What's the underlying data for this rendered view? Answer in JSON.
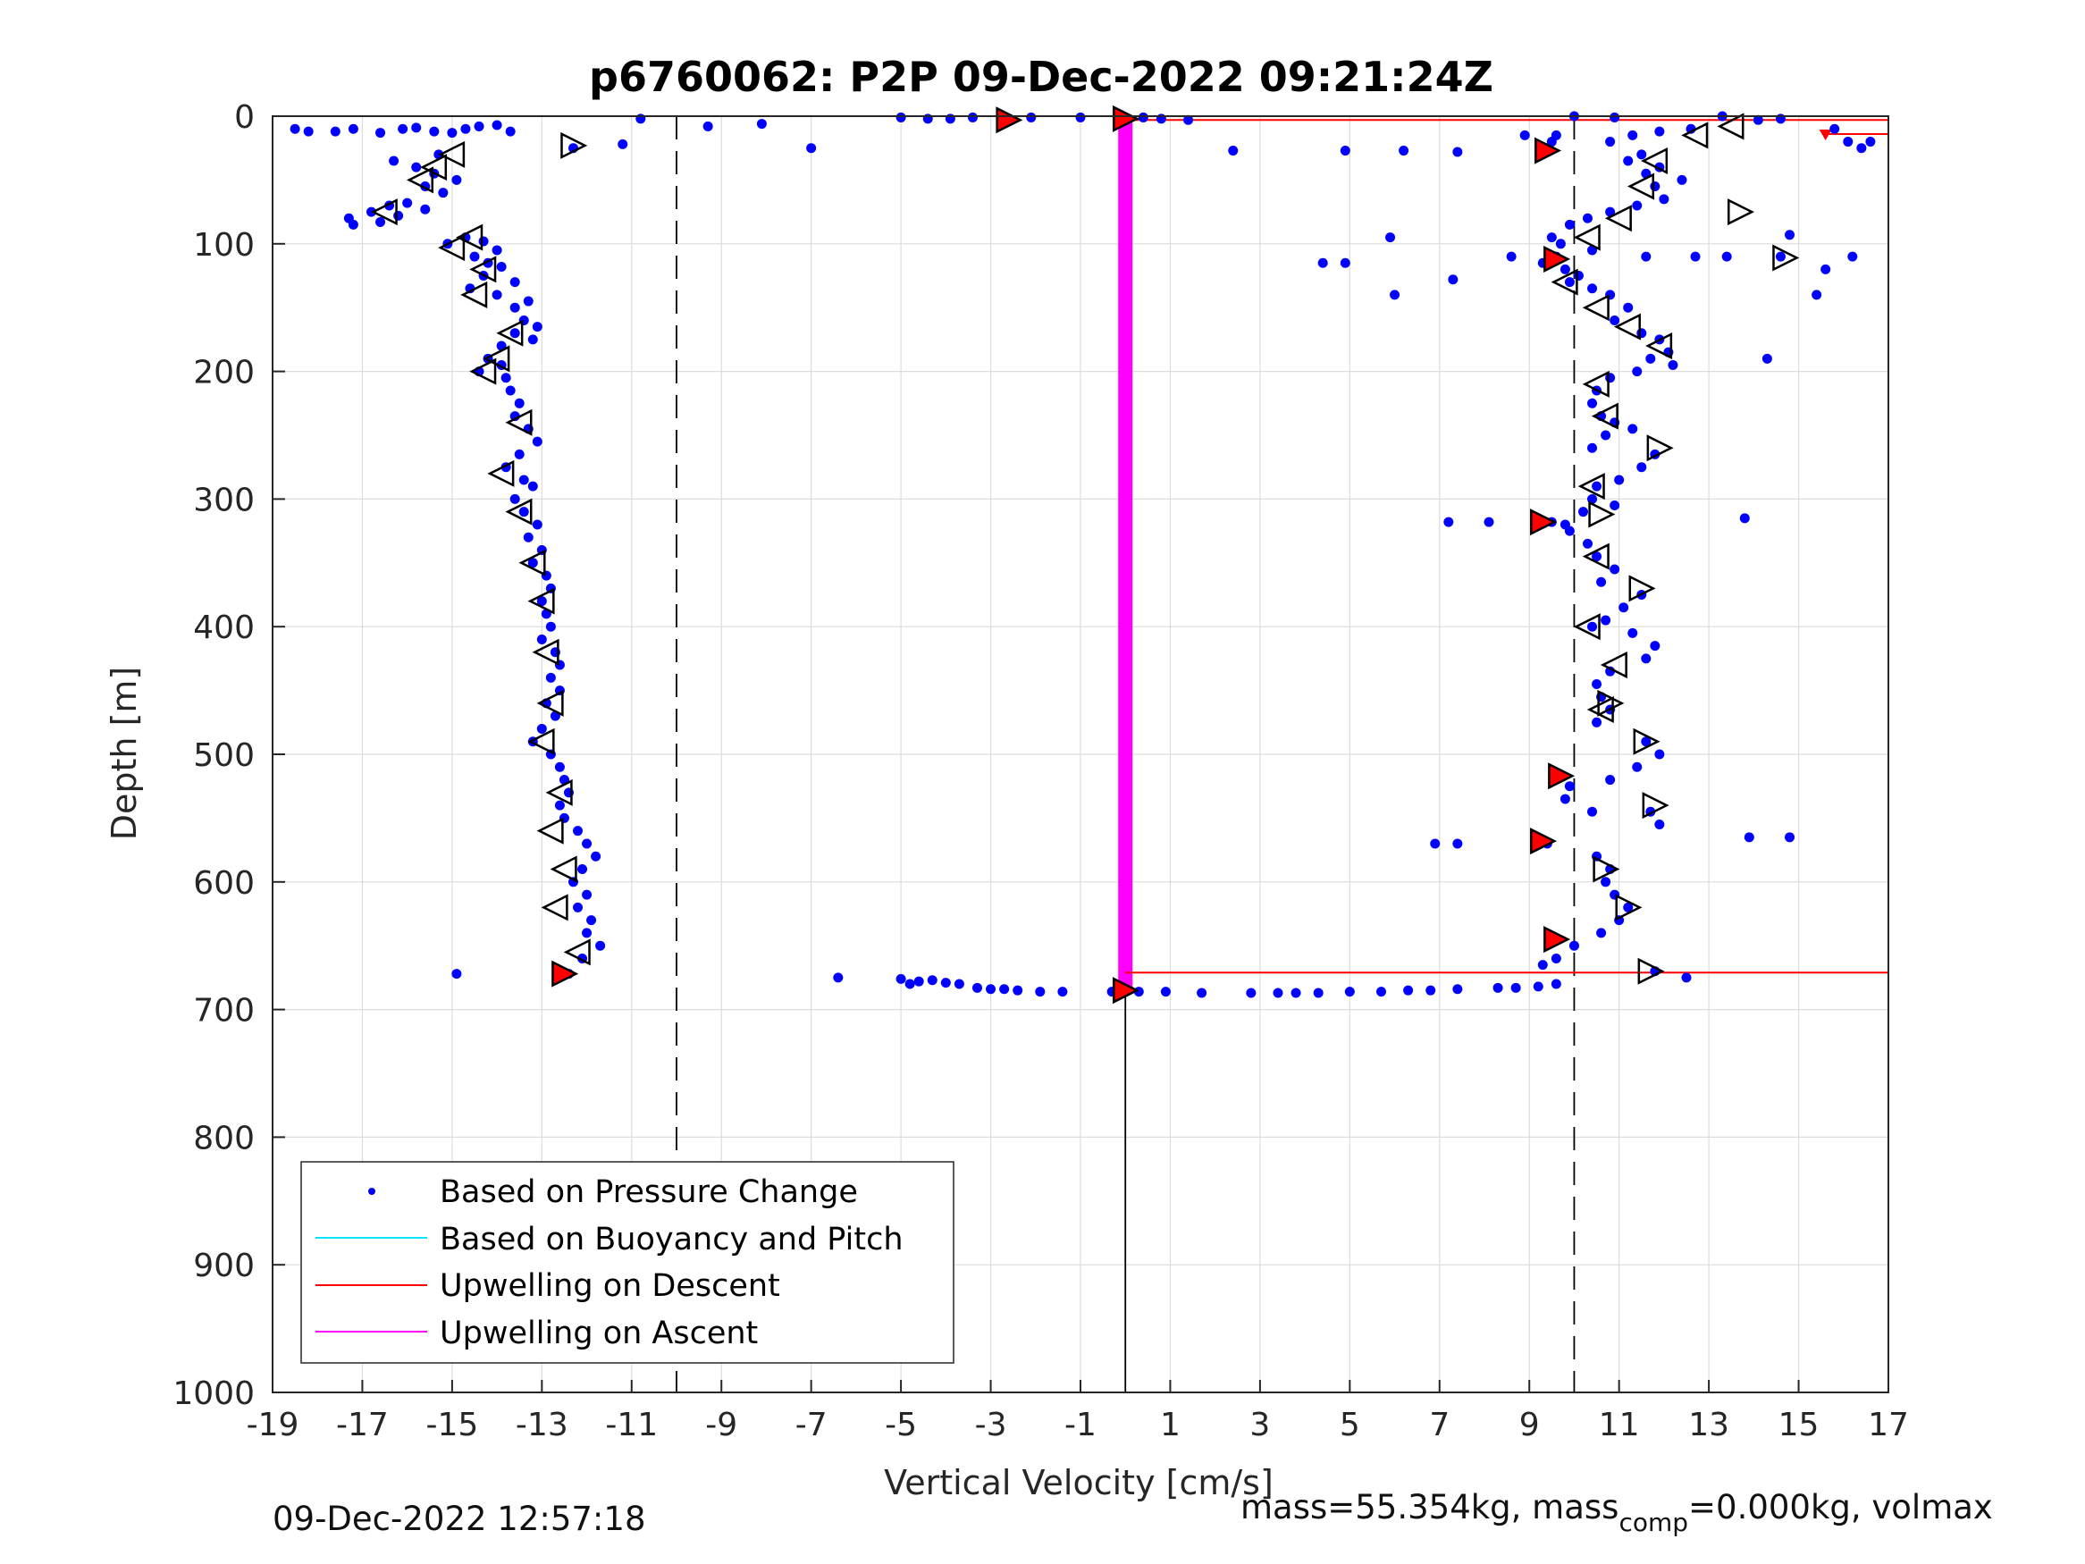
{
  "chart_data": {
    "type": "scatter",
    "title": "p6760062: P2P 09-Dec-2022 09:21:24Z",
    "xlabel": "Vertical Velocity [cm/s]",
    "ylabel": "Depth [m]",
    "xlim": [
      -19,
      17
    ],
    "ylim": [
      0,
      1000
    ],
    "y_reversed": true,
    "xticks": [
      -19,
      -17,
      -15,
      -13,
      -11,
      -9,
      -7,
      -5,
      -3,
      -1,
      1,
      3,
      5,
      7,
      9,
      11,
      13,
      15,
      17
    ],
    "yticks": [
      0,
      100,
      200,
      300,
      400,
      500,
      600,
      700,
      800,
      900,
      1000
    ],
    "grid": true,
    "legend_position": "bottom-left",
    "legend": [
      {
        "label": "Based on Pressure Change",
        "color": "#0000ff",
        "style": "dot"
      },
      {
        "label": "Based on Buoyancy and Pitch",
        "color": "#00e5ff",
        "style": "line"
      },
      {
        "label": "Upwelling on Descent",
        "color": "#ff0000",
        "style": "line"
      },
      {
        "label": "Upwelling on Ascent",
        "color": "#ff00ff",
        "style": "line"
      }
    ],
    "reference_lines": {
      "dashed_x": [
        -10,
        10
      ],
      "solid_x": 0,
      "solid_x_depth_range": [
        685,
        1000
      ]
    },
    "upwelling_on_ascent": {
      "x": 0,
      "depth_range": [
        2,
        685
      ],
      "color": "#ff00ff"
    },
    "upwelling_on_descent": [
      {
        "x_range": [
          0,
          17
        ],
        "depth": 3,
        "color": "#ff0000"
      },
      {
        "x_range": [
          0,
          17
        ],
        "depth": 671,
        "color": "#ff0000"
      },
      {
        "x_range": [
          15.6,
          17
        ],
        "depth": 14,
        "color": "#ff0000"
      }
    ],
    "descent_profile": [
      [
        -18.5,
        10
      ],
      [
        -18.2,
        12
      ],
      [
        -17.6,
        12
      ],
      [
        -17.2,
        10
      ],
      [
        -16.6,
        13
      ],
      [
        -16.1,
        10
      ],
      [
        -15.8,
        9
      ],
      [
        -15.4,
        12
      ],
      [
        -15,
        13
      ],
      [
        -14.7,
        10
      ],
      [
        -14.4,
        8
      ],
      [
        -14,
        7
      ],
      [
        -13.7,
        12
      ],
      [
        -16.3,
        35
      ],
      [
        -15.8,
        40
      ],
      [
        -15.4,
        45
      ],
      [
        -15.6,
        55
      ],
      [
        -15.2,
        60
      ],
      [
        -14.9,
        50
      ],
      [
        -15.3,
        30
      ],
      [
        -16.8,
        75
      ],
      [
        -17.3,
        80
      ],
      [
        -17.2,
        85
      ],
      [
        -16.6,
        83
      ],
      [
        -16.2,
        78
      ],
      [
        -16.4,
        70
      ],
      [
        -16.0,
        68
      ],
      [
        -15.6,
        73
      ],
      [
        -15.1,
        100
      ],
      [
        -14.7,
        95
      ],
      [
        -14.3,
        98
      ],
      [
        -14.0,
        105
      ],
      [
        -14.5,
        110
      ],
      [
        -14.2,
        115
      ],
      [
        -13.9,
        118
      ],
      [
        -14.3,
        125
      ],
      [
        -14.6,
        135
      ],
      [
        -14.0,
        140
      ],
      [
        -13.6,
        130
      ],
      [
        -13.3,
        145
      ],
      [
        -13.6,
        150
      ],
      [
        -13.4,
        160
      ],
      [
        -13.1,
        165
      ],
      [
        -13.6,
        170
      ],
      [
        -13.2,
        175
      ],
      [
        -13.9,
        180
      ],
      [
        -14.2,
        190
      ],
      [
        -13.9,
        195
      ],
      [
        -14.4,
        200
      ],
      [
        -13.8,
        205
      ],
      [
        -13.7,
        215
      ],
      [
        -13.5,
        225
      ],
      [
        -13.6,
        235
      ],
      [
        -13.3,
        245
      ],
      [
        -13.1,
        255
      ],
      [
        -13.5,
        265
      ],
      [
        -13.8,
        275
      ],
      [
        -13.4,
        285
      ],
      [
        -13.2,
        290
      ],
      [
        -13.6,
        300
      ],
      [
        -13.4,
        310
      ],
      [
        -13.1,
        320
      ],
      [
        -13.3,
        330
      ],
      [
        -13.0,
        340
      ],
      [
        -13.2,
        350
      ],
      [
        -12.9,
        360
      ],
      [
        -12.8,
        370
      ],
      [
        -13.0,
        380
      ],
      [
        -12.9,
        390
      ],
      [
        -12.8,
        400
      ],
      [
        -13.0,
        410
      ],
      [
        -12.7,
        420
      ],
      [
        -12.6,
        430
      ],
      [
        -12.8,
        440
      ],
      [
        -12.6,
        450
      ],
      [
        -12.9,
        460
      ],
      [
        -12.7,
        470
      ],
      [
        -13.0,
        480
      ],
      [
        -13.2,
        490
      ],
      [
        -12.8,
        500
      ],
      [
        -12.6,
        510
      ],
      [
        -12.5,
        520
      ],
      [
        -12.4,
        530
      ],
      [
        -12.6,
        540
      ],
      [
        -12.5,
        550
      ],
      [
        -12.2,
        560
      ],
      [
        -12.0,
        570
      ],
      [
        -11.8,
        580
      ],
      [
        -12.1,
        590
      ],
      [
        -12.3,
        600
      ],
      [
        -12.0,
        610
      ],
      [
        -12.2,
        620
      ],
      [
        -11.9,
        630
      ],
      [
        -12.0,
        640
      ],
      [
        -11.7,
        650
      ],
      [
        -12.1,
        660
      ],
      [
        -12.4,
        672
      ],
      [
        -14.9,
        672
      ],
      [
        -12.3,
        25
      ],
      [
        -11.2,
        22
      ],
      [
        -10.8,
        2
      ],
      [
        -9.3,
        8
      ],
      [
        -8.1,
        6
      ],
      [
        -7.0,
        25
      ]
    ],
    "bottom_transition": [
      [
        -6.4,
        675
      ],
      [
        -5.0,
        676
      ],
      [
        -4.8,
        680
      ],
      [
        -4.6,
        678
      ],
      [
        -4.3,
        677
      ],
      [
        -4.0,
        679
      ],
      [
        -3.7,
        680
      ],
      [
        -3.3,
        683
      ],
      [
        -3.0,
        684
      ],
      [
        -2.7,
        684
      ],
      [
        -2.4,
        685
      ],
      [
        -1.9,
        686
      ],
      [
        -1.4,
        686
      ],
      [
        -0.3,
        686
      ],
      [
        0.3,
        686
      ],
      [
        0.9,
        686
      ],
      [
        1.7,
        687
      ],
      [
        2.8,
        687
      ],
      [
        3.4,
        687
      ],
      [
        3.8,
        687
      ],
      [
        4.3,
        687
      ],
      [
        5.0,
        686
      ],
      [
        5.7,
        686
      ],
      [
        6.3,
        685
      ],
      [
        6.8,
        685
      ],
      [
        7.4,
        684
      ],
      [
        8.3,
        683
      ],
      [
        8.7,
        683
      ],
      [
        9.2,
        682
      ],
      [
        9.6,
        680
      ]
    ],
    "surface_points": [
      [
        -5.0,
        1
      ],
      [
        -4.4,
        2
      ],
      [
        -3.9,
        2
      ],
      [
        -3.4,
        1
      ],
      [
        -2.1,
        1
      ],
      [
        -1.0,
        1
      ],
      [
        0.4,
        1
      ],
      [
        0.8,
        2
      ],
      [
        1.4,
        3
      ],
      [
        2.4,
        27
      ],
      [
        4.9,
        27
      ],
      [
        6.2,
        27
      ],
      [
        7.4,
        28
      ],
      [
        8.9,
        15
      ],
      [
        9.6,
        15
      ],
      [
        10.0,
        0
      ],
      [
        10.9,
        1
      ],
      [
        11.3,
        15
      ],
      [
        11.9,
        12
      ],
      [
        12.6,
        10
      ],
      [
        13.3,
        0
      ],
      [
        14.1,
        3
      ],
      [
        14.6,
        2
      ],
      [
        15.8,
        10
      ],
      [
        16.1,
        20
      ],
      [
        16.4,
        25
      ],
      [
        16.6,
        20
      ]
    ],
    "ascent_profile": [
      [
        9.5,
        20
      ],
      [
        9.4,
        25
      ],
      [
        10.8,
        20
      ],
      [
        11.5,
        30
      ],
      [
        11.9,
        40
      ],
      [
        12.4,
        50
      ],
      [
        11.6,
        45
      ],
      [
        11.2,
        35
      ],
      [
        11.8,
        55
      ],
      [
        12.0,
        65
      ],
      [
        11.4,
        70
      ],
      [
        10.8,
        75
      ],
      [
        10.3,
        80
      ],
      [
        9.9,
        85
      ],
      [
        9.5,
        95
      ],
      [
        9.7,
        100
      ],
      [
        10.4,
        105
      ],
      [
        9.6,
        110
      ],
      [
        9.3,
        115
      ],
      [
        9.8,
        120
      ],
      [
        10.1,
        125
      ],
      [
        9.9,
        130
      ],
      [
        10.4,
        135
      ],
      [
        10.8,
        140
      ],
      [
        11.2,
        150
      ],
      [
        10.9,
        160
      ],
      [
        11.5,
        170
      ],
      [
        11.9,
        175
      ],
      [
        12.1,
        185
      ],
      [
        11.7,
        190
      ],
      [
        12.2,
        195
      ],
      [
        11.4,
        200
      ],
      [
        10.8,
        205
      ],
      [
        10.5,
        215
      ],
      [
        10.4,
        225
      ],
      [
        10.6,
        235
      ],
      [
        10.9,
        240
      ],
      [
        11.3,
        245
      ],
      [
        10.7,
        250
      ],
      [
        10.4,
        260
      ],
      [
        11.8,
        265
      ],
      [
        11.5,
        275
      ],
      [
        11.0,
        285
      ],
      [
        10.5,
        290
      ],
      [
        10.4,
        300
      ],
      [
        10.9,
        305
      ],
      [
        10.2,
        310
      ],
      [
        9.5,
        318
      ],
      [
        9.9,
        325
      ],
      [
        10.3,
        335
      ],
      [
        10.5,
        345
      ],
      [
        10.9,
        355
      ],
      [
        10.6,
        365
      ],
      [
        11.5,
        375
      ],
      [
        11.1,
        385
      ],
      [
        10.7,
        395
      ],
      [
        10.4,
        400
      ],
      [
        11.3,
        405
      ],
      [
        11.8,
        415
      ],
      [
        11.6,
        425
      ],
      [
        10.8,
        435
      ],
      [
        10.5,
        445
      ],
      [
        10.6,
        455
      ],
      [
        10.8,
        465
      ],
      [
        10.5,
        475
      ],
      [
        11.6,
        490
      ],
      [
        11.9,
        500
      ],
      [
        11.4,
        510
      ],
      [
        10.8,
        520
      ],
      [
        9.9,
        525
      ],
      [
        9.8,
        535
      ],
      [
        10.4,
        545
      ],
      [
        11.7,
        545
      ],
      [
        11.9,
        555
      ],
      [
        9.4,
        570
      ],
      [
        10.5,
        580
      ],
      [
        10.8,
        590
      ],
      [
        10.7,
        600
      ],
      [
        10.9,
        610
      ],
      [
        11.2,
        620
      ],
      [
        11.0,
        630
      ],
      [
        10.6,
        640
      ],
      [
        10.0,
        650
      ],
      [
        9.6,
        660
      ],
      [
        9.3,
        665
      ],
      [
        11.8,
        670
      ],
      [
        12.5,
        675
      ],
      [
        7.2,
        318
      ],
      [
        8.1,
        318
      ],
      [
        9.8,
        320
      ],
      [
        13.8,
        315
      ],
      [
        14.3,
        190
      ],
      [
        15.6,
        120
      ],
      [
        16.2,
        110
      ],
      [
        15.4,
        140
      ],
      [
        13.9,
        565
      ],
      [
        14.8,
        565
      ],
      [
        6.9,
        570
      ],
      [
        7.4,
        570
      ],
      [
        5.9,
        95
      ],
      [
        4.4,
        115
      ],
      [
        4.9,
        115
      ],
      [
        6.0,
        140
      ],
      [
        7.3,
        128
      ],
      [
        8.6,
        110
      ],
      [
        11.6,
        110
      ],
      [
        12.7,
        110
      ],
      [
        13.4,
        110
      ],
      [
        14.6,
        110
      ],
      [
        14.8,
        93
      ]
    ],
    "markers_right_pointing_open": [
      [
        -12.3,
        23
      ],
      [
        13.7,
        75
      ],
      [
        14.7,
        111
      ],
      [
        11.9,
        260
      ],
      [
        10.6,
        312
      ],
      [
        11.5,
        370
      ],
      [
        11.6,
        490
      ],
      [
        11.8,
        540
      ],
      [
        10.7,
        590
      ],
      [
        11.7,
        670
      ],
      [
        11.2,
        620
      ],
      [
        10.8,
        460
      ]
    ],
    "markers_left_pointing_open": [
      [
        -15.7,
        50
      ],
      [
        -15.4,
        40
      ],
      [
        -15.0,
        30
      ],
      [
        -16.5,
        75
      ],
      [
        -15.0,
        103
      ],
      [
        -14.6,
        95
      ],
      [
        -14.3,
        120
      ],
      [
        -14.5,
        140
      ],
      [
        -13.7,
        170
      ],
      [
        -14.0,
        190
      ],
      [
        -14.3,
        200
      ],
      [
        -13.5,
        240
      ],
      [
        -13.9,
        280
      ],
      [
        -13.5,
        310
      ],
      [
        -13.2,
        350
      ],
      [
        -13.0,
        380
      ],
      [
        -12.9,
        420
      ],
      [
        -12.8,
        460
      ],
      [
        -13.0,
        490
      ],
      [
        -12.6,
        530
      ],
      [
        -12.8,
        560
      ],
      [
        -12.5,
        590
      ],
      [
        -12.7,
        620
      ],
      [
        -12.2,
        655
      ],
      [
        13.5,
        8
      ],
      [
        12.7,
        15
      ],
      [
        11.8,
        35
      ],
      [
        11.5,
        55
      ],
      [
        11.0,
        80
      ],
      [
        10.3,
        95
      ],
      [
        9.8,
        130
      ],
      [
        10.5,
        150
      ],
      [
        11.2,
        165
      ],
      [
        11.9,
        180
      ],
      [
        10.5,
        210
      ],
      [
        10.7,
        235
      ],
      [
        10.4,
        290
      ],
      [
        10.5,
        345
      ],
      [
        10.3,
        400
      ],
      [
        10.9,
        430
      ],
      [
        10.6,
        465
      ]
    ],
    "markers_red_filled": [
      [
        -2.6,
        3
      ],
      [
        0.0,
        2
      ],
      [
        9.4,
        27
      ],
      [
        9.6,
        112
      ],
      [
        9.3,
        318
      ],
      [
        9.7,
        517
      ],
      [
        9.3,
        568
      ],
      [
        9.6,
        645
      ],
      [
        -12.5,
        672
      ],
      [
        0.0,
        685
      ]
    ]
  },
  "footer": {
    "left_timestamp": "09-Dec-2022 12:57:18",
    "right_part1": "mass=55.354kg, mass",
    "right_sub": "comp",
    "right_part2": "=0.000kg, volmax"
  }
}
